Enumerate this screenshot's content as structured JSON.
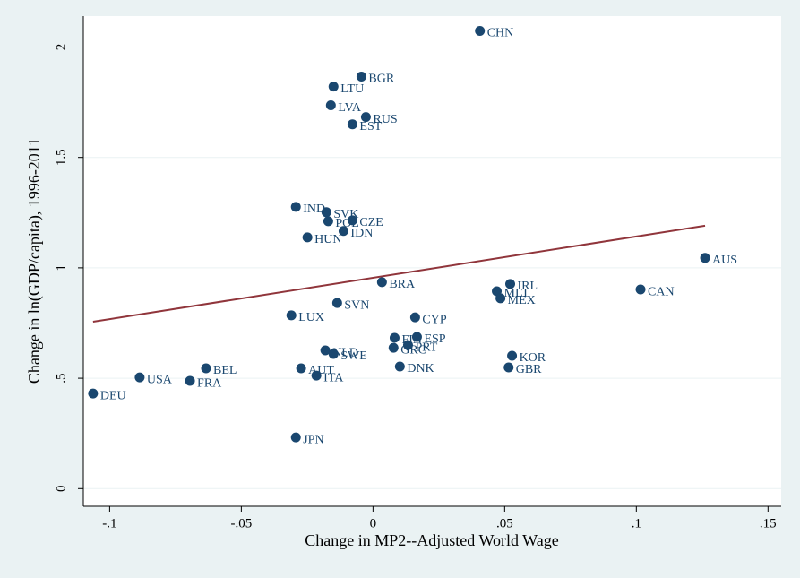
{
  "chart_data": {
    "type": "scatter",
    "x_label": "Change in MP2--Adjusted World Wage",
    "y_label": "Change in ln(GDP/capita), 1996-2011",
    "point_labels": [
      "CHN",
      "BGR",
      "LTU",
      "LVA",
      "RUS",
      "EST",
      "IND",
      "SVK",
      "POL",
      "CZE",
      "IDN",
      "HUN",
      "AUS",
      "BRA",
      "IRL",
      "MLT",
      "CAN",
      "MEX",
      "SVN",
      "LUX",
      "CYP",
      "FIN",
      "ESP",
      "NLD",
      "GRC",
      "PRT",
      "SWE",
      "KOR",
      "DNK",
      "GBR",
      "BEL",
      "AUT",
      "USA",
      "ITA",
      "FRA",
      "DEU",
      "JPN"
    ],
    "x": [
      0.0406,
      -0.0044,
      -0.015,
      -0.016,
      -0.0027,
      -0.0078,
      -0.0293,
      -0.0177,
      -0.017,
      -0.0078,
      -0.0112,
      -0.0249,
      0.1261,
      0.0034,
      0.0521,
      0.047,
      0.1016,
      0.0484,
      -0.0136,
      -0.031,
      0.016,
      0.0082,
      0.0167,
      -0.0181,
      0.0078,
      0.0133,
      -0.015,
      0.0528,
      0.0102,
      0.0515,
      -0.0634,
      -0.0273,
      -0.0886,
      -0.0215,
      -0.0695,
      -0.1063,
      -0.0293
    ],
    "values": [
      2.073,
      1.866,
      1.821,
      1.736,
      1.683,
      1.65,
      1.276,
      1.252,
      1.211,
      1.215,
      1.167,
      1.138,
      1.045,
      0.935,
      0.927,
      0.894,
      0.902,
      0.862,
      0.841,
      0.785,
      0.776,
      0.683,
      0.687,
      0.626,
      0.638,
      0.65,
      0.61,
      0.602,
      0.553,
      0.549,
      0.545,
      0.545,
      0.504,
      0.512,
      0.488,
      0.431,
      0.232
    ],
    "color": "#1a476f",
    "fit": {
      "type": "line",
      "x": [
        -0.1063,
        0.1261
      ],
      "values": [
        0.756,
        1.191
      ],
      "color": "#90353b"
    },
    "xlim": [
      -0.11,
      0.155
    ],
    "ylim": [
      -0.08,
      2.14
    ],
    "xticks": [
      {
        "value": -0.1,
        "label": "-.1"
      },
      {
        "value": -0.05,
        "label": "-.05"
      },
      0,
      {
        "value": 0.05,
        "label": ".05"
      },
      {
        "value": 0.1,
        "label": ".1"
      },
      {
        "value": 0.15,
        "label": ".15"
      }
    ],
    "yticks": [
      0,
      {
        "value": 0.5,
        "label": ".5"
      },
      1,
      {
        "value": 1.5,
        "label": "1.5"
      },
      2
    ],
    "grid": true
  }
}
